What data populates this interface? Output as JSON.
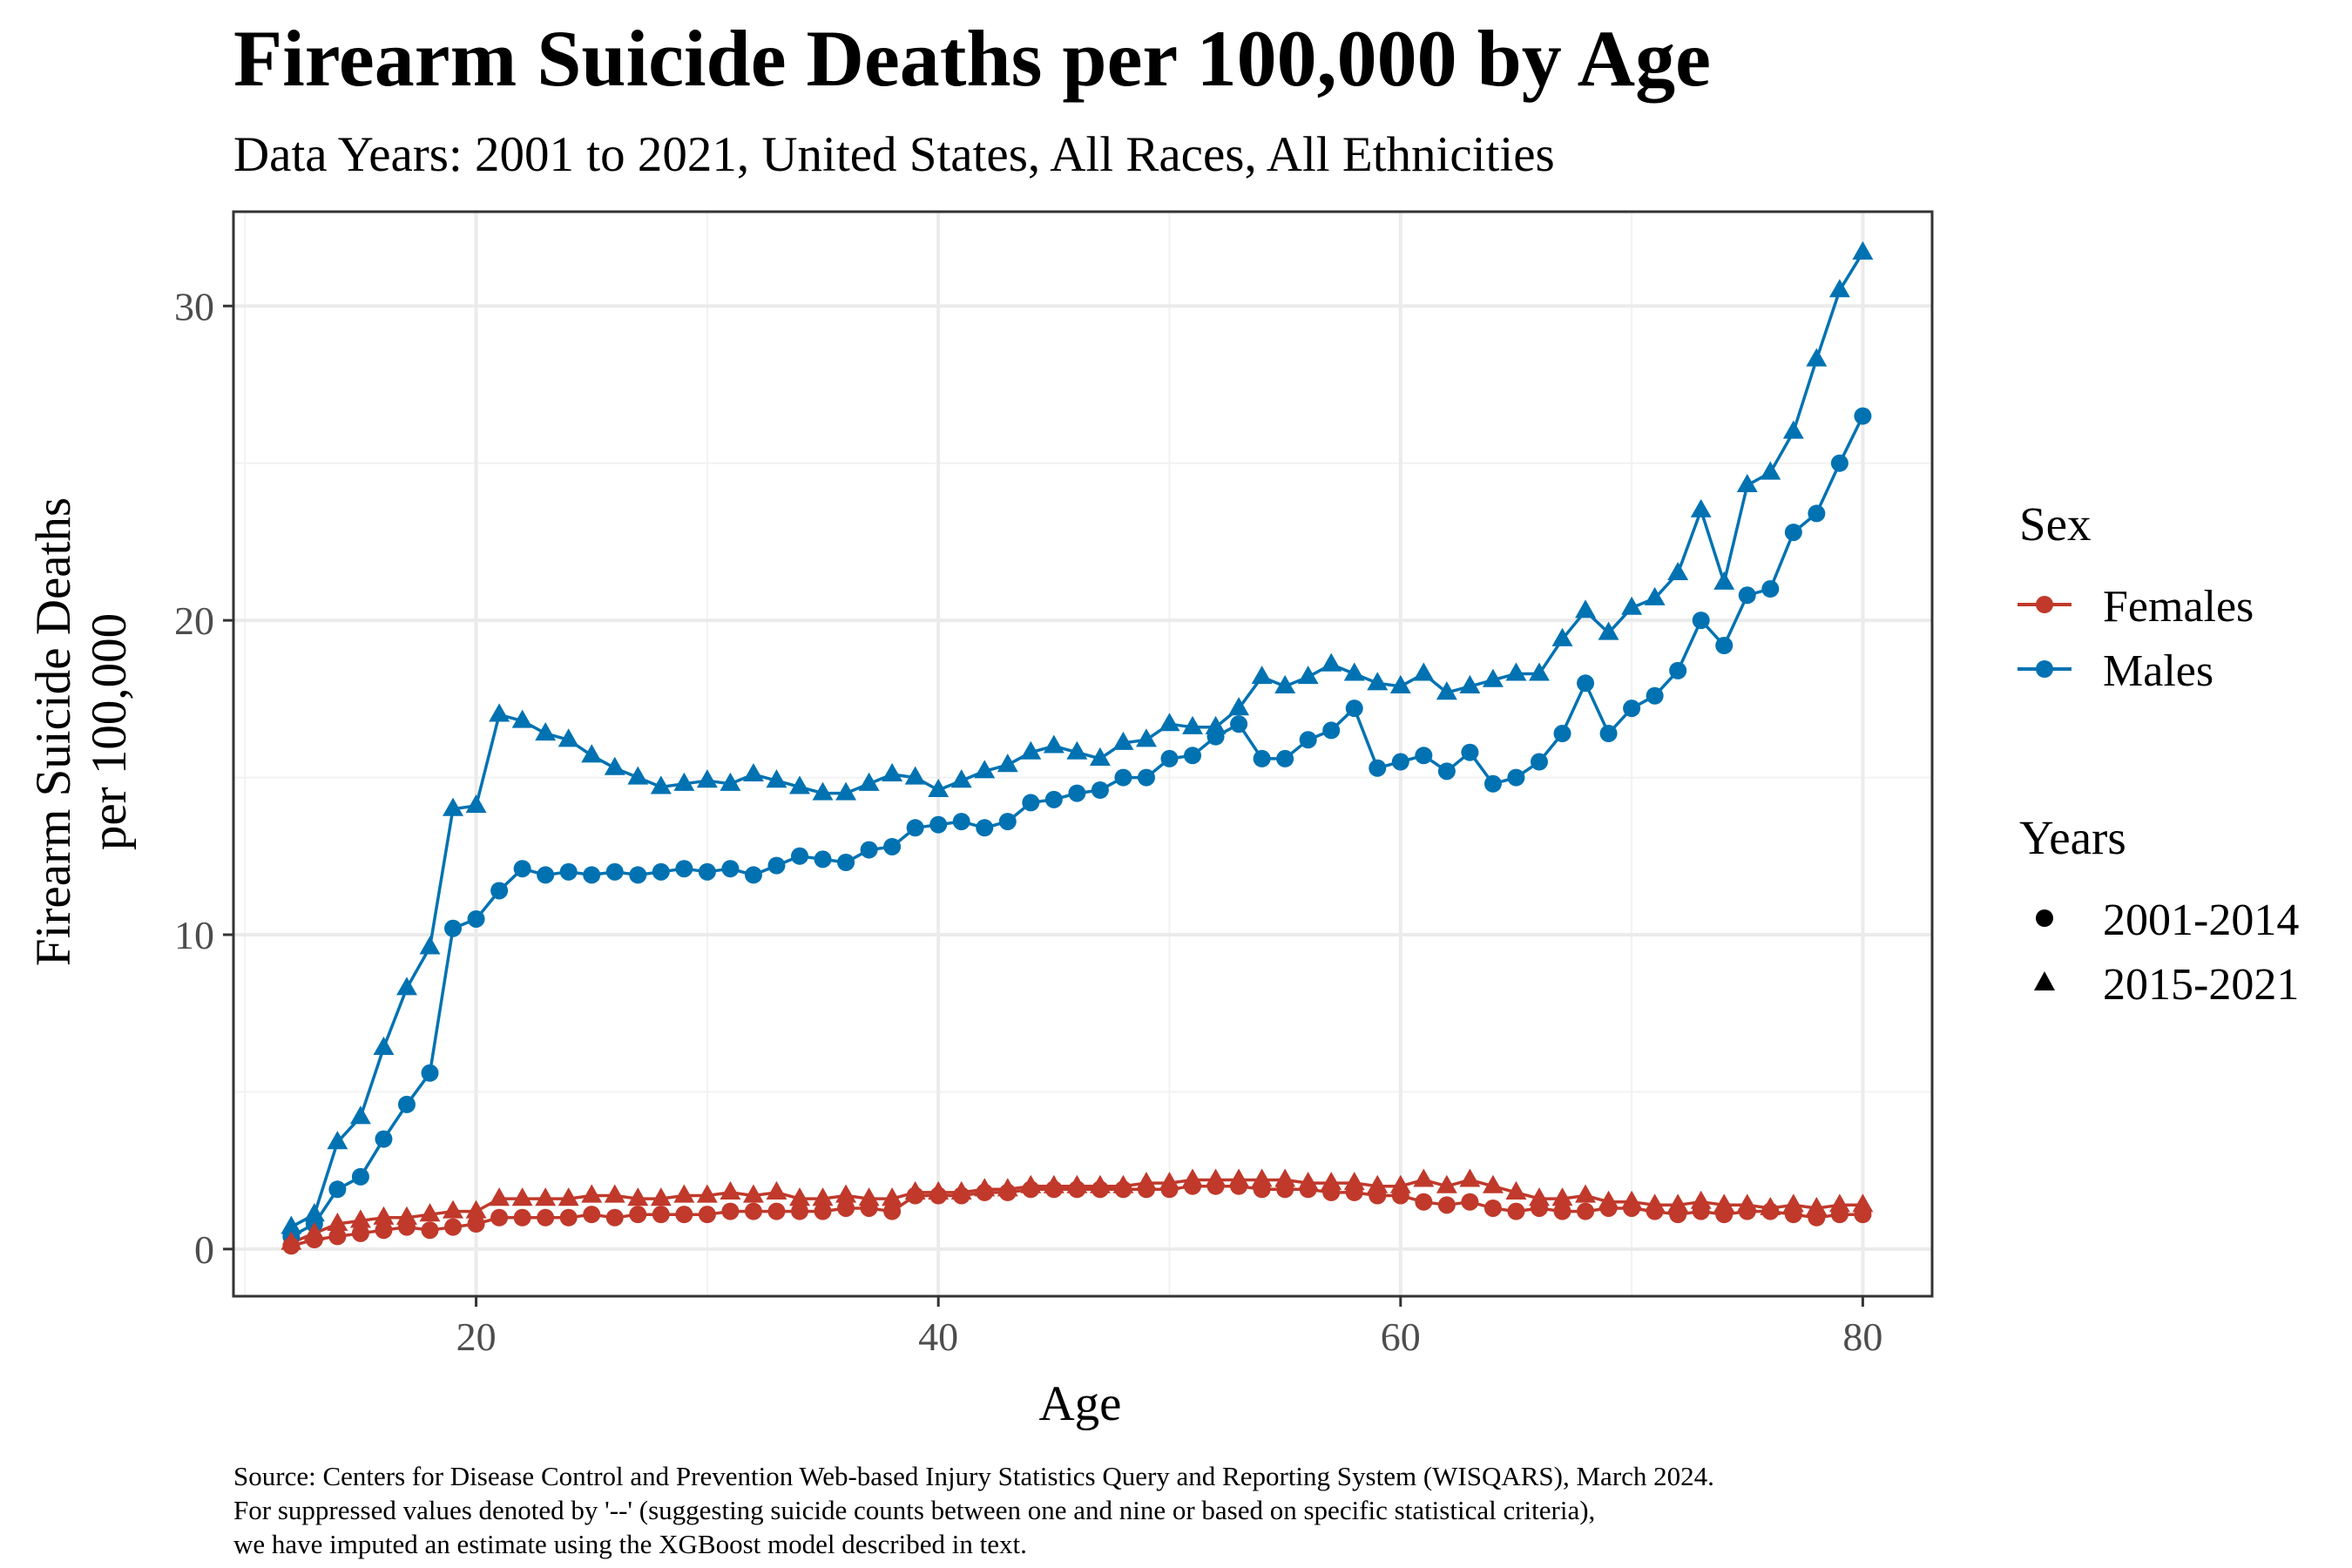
{
  "title": "Firearm Suicide Deaths per 100,000 by Age",
  "subtitle": "Data Years: 2001 to 2021, United States, All Races, All Ethnicities",
  "caption": [
    "Source: Centers for Disease Control and Prevention Web-based Injury Statistics Query and Reporting System (WISQARS), March 2024.",
    "For suppressed values denoted by '--' (suggesting suicide counts between one and nine or based on specific statistical criteria),",
    "we have imputed an estimate using the XGBoost model described in text."
  ],
  "legend": {
    "sex_title": "Sex",
    "sex_items": [
      {
        "label": "Females",
        "color": "#C0392B"
      },
      {
        "label": "Males",
        "color": "#0072B2"
      }
    ],
    "years_title": "Years",
    "years_items": [
      {
        "label": "2001-2014",
        "shape": "circle-icon"
      },
      {
        "label": "2015-2021",
        "shape": "triangle-icon"
      }
    ]
  },
  "chart_data": {
    "type": "line",
    "xlabel": "Age",
    "ylabel": [
      "Firearm Suicide Deaths",
      "per 100,000"
    ],
    "xlim": [
      9.5,
      83
    ],
    "ylim": [
      -1.5,
      33
    ],
    "x_ticks": [
      20,
      40,
      60,
      80
    ],
    "y_ticks": [
      0,
      10,
      20,
      30
    ],
    "grid": true,
    "legend_position": "right",
    "x": [
      12,
      13,
      14,
      15,
      16,
      17,
      18,
      19,
      20,
      21,
      22,
      23,
      24,
      25,
      26,
      27,
      28,
      29,
      30,
      31,
      32,
      33,
      34,
      35,
      36,
      37,
      38,
      39,
      40,
      41,
      42,
      43,
      44,
      45,
      46,
      47,
      48,
      49,
      50,
      51,
      52,
      53,
      54,
      55,
      56,
      57,
      58,
      59,
      60,
      61,
      62,
      63,
      64,
      65,
      66,
      67,
      68,
      69,
      70,
      71,
      72,
      73,
      74,
      75,
      76,
      77,
      78,
      79,
      80
    ],
    "series": [
      {
        "sex": "Males",
        "years": "2015-2021",
        "marker": "triangle",
        "color": "#0072B2",
        "values": [
          0.7,
          1.1,
          3.4,
          4.2,
          6.4,
          8.3,
          9.6,
          14.0,
          14.1,
          17.0,
          16.8,
          16.4,
          16.2,
          15.7,
          15.3,
          15.0,
          14.7,
          14.8,
          14.9,
          14.8,
          15.1,
          14.9,
          14.7,
          14.5,
          14.5,
          14.8,
          15.1,
          15.0,
          14.6,
          14.9,
          15.2,
          15.4,
          15.8,
          16.0,
          15.8,
          15.6,
          16.1,
          16.2,
          16.7,
          16.6,
          16.6,
          17.2,
          18.2,
          17.9,
          18.2,
          18.6,
          18.3,
          18.0,
          17.9,
          18.3,
          17.7,
          17.9,
          18.1,
          18.3,
          18.3,
          19.4,
          20.3,
          19.6,
          20.4,
          20.7,
          21.5,
          23.5,
          21.2,
          24.3,
          24.7,
          26.0,
          28.3,
          30.5,
          31.7
        ]
      },
      {
        "sex": "Males",
        "years": "2001-2014",
        "marker": "circle",
        "color": "#0072B2",
        "values": [
          0.4,
          0.8,
          1.9,
          2.3,
          3.5,
          4.6,
          5.6,
          10.2,
          10.5,
          11.4,
          12.1,
          11.9,
          12.0,
          11.9,
          12.0,
          11.9,
          12.0,
          12.1,
          12.0,
          12.1,
          11.9,
          12.2,
          12.5,
          12.4,
          12.3,
          12.7,
          12.8,
          13.4,
          13.5,
          13.6,
          13.4,
          13.6,
          14.2,
          14.3,
          14.5,
          14.6,
          15.0,
          15.0,
          15.6,
          15.7,
          16.3,
          16.7,
          15.6,
          15.6,
          16.2,
          16.5,
          17.2,
          15.3,
          15.5,
          15.7,
          15.2,
          15.8,
          14.8,
          15.0,
          15.5,
          16.4,
          18.0,
          16.4,
          17.2,
          17.6,
          18.4,
          20.0,
          19.2,
          20.8,
          21.0,
          22.8,
          23.4,
          25.0,
          26.5
        ]
      },
      {
        "sex": "Females",
        "years": "2015-2021",
        "marker": "triangle",
        "color": "#C0392B",
        "values": [
          0.2,
          0.5,
          0.8,
          0.9,
          1.0,
          1.0,
          1.1,
          1.2,
          1.2,
          1.6,
          1.6,
          1.6,
          1.6,
          1.7,
          1.7,
          1.6,
          1.6,
          1.7,
          1.7,
          1.8,
          1.7,
          1.8,
          1.6,
          1.6,
          1.7,
          1.6,
          1.6,
          1.8,
          1.8,
          1.8,
          1.9,
          1.9,
          2.0,
          2.0,
          2.0,
          2.0,
          2.0,
          2.1,
          2.1,
          2.2,
          2.2,
          2.2,
          2.2,
          2.2,
          2.1,
          2.1,
          2.1,
          2.0,
          2.0,
          2.2,
          2.0,
          2.2,
          2.0,
          1.8,
          1.6,
          1.6,
          1.7,
          1.5,
          1.5,
          1.4,
          1.4,
          1.5,
          1.4,
          1.4,
          1.3,
          1.4,
          1.3,
          1.4,
          1.4
        ]
      },
      {
        "sex": "Females",
        "years": "2001-2014",
        "marker": "circle",
        "color": "#C0392B",
        "values": [
          0.1,
          0.3,
          0.4,
          0.5,
          0.6,
          0.7,
          0.6,
          0.7,
          0.8,
          1.0,
          1.0,
          1.0,
          1.0,
          1.1,
          1.0,
          1.1,
          1.1,
          1.1,
          1.1,
          1.2,
          1.2,
          1.2,
          1.2,
          1.2,
          1.3,
          1.3,
          1.2,
          1.7,
          1.7,
          1.7,
          1.8,
          1.8,
          1.9,
          1.9,
          1.9,
          1.9,
          1.9,
          1.9,
          1.9,
          2.0,
          2.0,
          2.0,
          1.9,
          1.9,
          1.9,
          1.8,
          1.8,
          1.7,
          1.7,
          1.5,
          1.4,
          1.5,
          1.3,
          1.2,
          1.3,
          1.2,
          1.2,
          1.3,
          1.3,
          1.2,
          1.1,
          1.2,
          1.1,
          1.2,
          1.2,
          1.1,
          1.0,
          1.1,
          1.1
        ]
      }
    ]
  }
}
